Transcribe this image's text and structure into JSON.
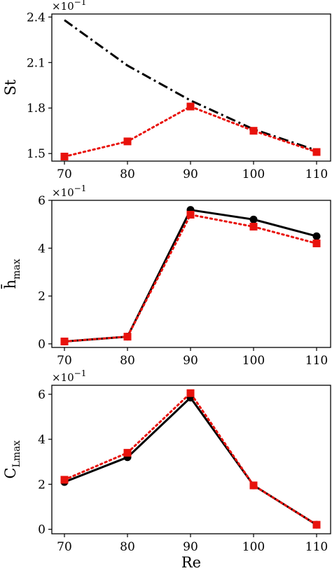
{
  "chart_data": [
    {
      "type": "line",
      "xlabel": "",
      "ylabel": "St",
      "y_multiplier": "×10",
      "y_multiplier_exp": "−1",
      "categories": [
        70,
        80,
        90,
        100,
        110
      ],
      "xlim": [
        70,
        110
      ],
      "ylim": [
        1.45,
        2.42
      ],
      "yticks": [
        1.5,
        1.8,
        2.1,
        2.4
      ],
      "ytick_labels": [
        "1.5",
        "1.8",
        "2.1",
        "2.4"
      ],
      "xtick_labels": [
        "70",
        "80",
        "90",
        "100",
        "110"
      ],
      "series": [
        {
          "values": [
            2.38,
            2.08,
            1.85,
            1.66,
            1.52
          ],
          "color": "#000000",
          "style": "dashdot",
          "marker": "none"
        },
        {
          "values": [
            1.48,
            1.58,
            1.81,
            1.65,
            1.51
          ],
          "color": "#e8120c",
          "style": "dotted",
          "marker": "square"
        }
      ],
      "grid": false
    },
    {
      "type": "line",
      "xlabel": "",
      "ylabel": "h̄",
      "ylabel_sub": "max",
      "y_multiplier": "×10",
      "y_multiplier_exp": "−1",
      "categories": [
        70,
        80,
        90,
        100,
        110
      ],
      "xlim": [
        70,
        110
      ],
      "ylim": [
        -0.15,
        6.0
      ],
      "yticks": [
        0,
        2,
        4,
        6
      ],
      "ytick_labels": [
        "0",
        "2",
        "4",
        "6"
      ],
      "xtick_labels": [
        "70",
        "80",
        "90",
        "100",
        "110"
      ],
      "series": [
        {
          "values": [
            0.1,
            0.3,
            5.6,
            5.2,
            4.5
          ],
          "color": "#000000",
          "style": "solid",
          "marker": "circle"
        },
        {
          "values": [
            0.1,
            0.3,
            5.4,
            4.9,
            4.2
          ],
          "color": "#e8120c",
          "style": "dotted",
          "marker": "square"
        }
      ],
      "grid": false
    },
    {
      "type": "line",
      "xlabel": "Re",
      "ylabel": "C",
      "ylabel_sub": "Lmax",
      "y_multiplier": "×10",
      "y_multiplier_exp": "−1",
      "categories": [
        70,
        80,
        90,
        100,
        110
      ],
      "xlim": [
        70,
        110
      ],
      "ylim": [
        -0.2,
        6.4
      ],
      "yticks": [
        0,
        2,
        4,
        6
      ],
      "ytick_labels": [
        "0",
        "2",
        "4",
        "6"
      ],
      "xtick_labels": [
        "70",
        "80",
        "90",
        "100",
        "110"
      ],
      "series": [
        {
          "values": [
            2.1,
            3.2,
            5.85,
            1.95,
            0.2
          ],
          "color": "#000000",
          "style": "solid",
          "marker": "circle"
        },
        {
          "values": [
            2.2,
            3.4,
            6.05,
            1.95,
            0.2
          ],
          "color": "#e8120c",
          "style": "dotted",
          "marker": "square"
        }
      ],
      "grid": false
    }
  ]
}
